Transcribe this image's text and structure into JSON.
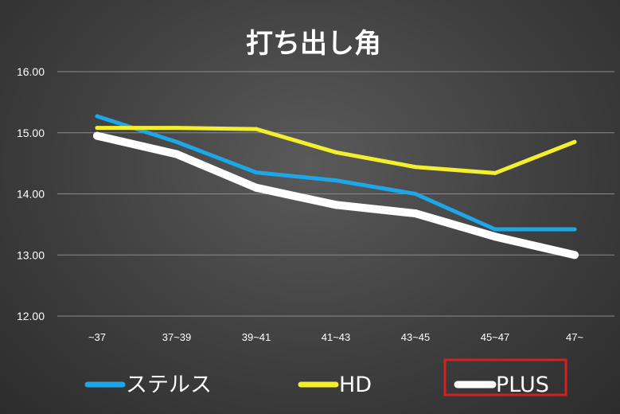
{
  "chart_data": {
    "type": "line",
    "title": "打ち出し角",
    "xlabel": "",
    "ylabel": "",
    "categories": [
      "~37",
      "37~39",
      "39~41",
      "41~43",
      "43~45",
      "45~47",
      "47~"
    ],
    "ylim": [
      12.0,
      16.0
    ],
    "yticks": [
      "12.00",
      "13.00",
      "14.00",
      "15.00",
      "16.00"
    ],
    "grid": true,
    "legend_position": "bottom",
    "series": [
      {
        "name": "ステルス",
        "color": "#1ea6e6",
        "values": [
          15.27,
          14.85,
          14.35,
          14.22,
          14.0,
          13.42,
          13.42
        ]
      },
      {
        "name": "HD",
        "color": "#f2ef2e",
        "values": [
          15.08,
          15.08,
          15.06,
          14.68,
          14.44,
          14.34,
          14.85
        ]
      },
      {
        "name": "PLUS",
        "color": "#ffffff",
        "values": [
          14.95,
          14.65,
          14.1,
          13.82,
          13.68,
          13.3,
          13.0
        ]
      }
    ],
    "highlight": {
      "series": "PLUS",
      "color": "#d4201f"
    }
  }
}
